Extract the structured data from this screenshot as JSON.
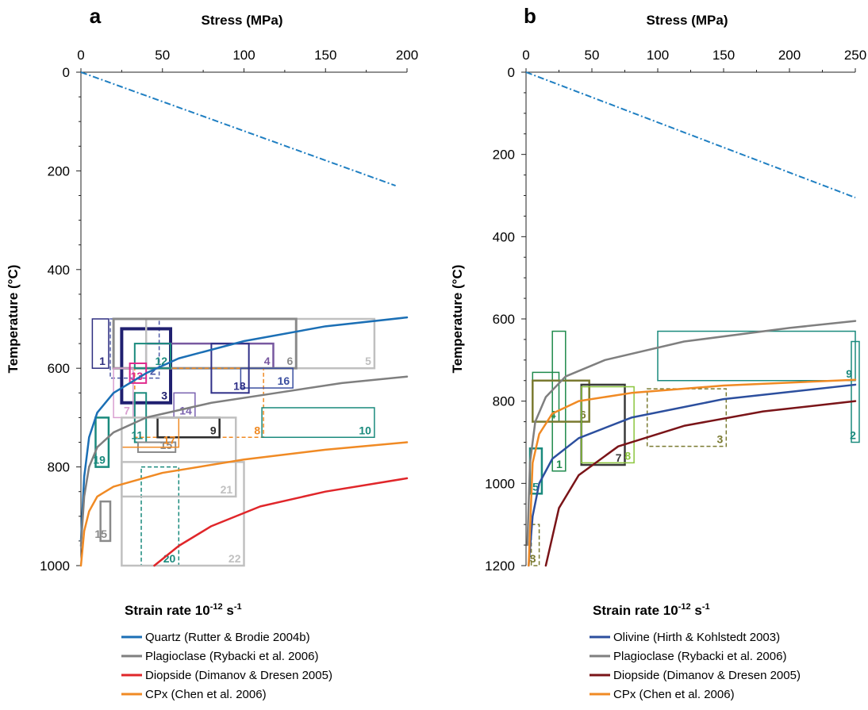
{
  "chart_data": [
    {
      "type": "line",
      "panel_label": "a",
      "xlabel": "Stress (MPa)",
      "ylabel": "Temperature (°C)",
      "xlim": [
        0,
        200
      ],
      "ylim": [
        0,
        1000
      ],
      "y_inverted": true,
      "x_axis_position": "top",
      "xticks": [
        0,
        50,
        100,
        150,
        200
      ],
      "yticks": [
        0,
        200,
        400,
        600,
        800,
        1000
      ],
      "grid": false,
      "reference_line": {
        "color": "#1f7fc2",
        "style": "dash-dot",
        "points": [
          [
            0,
            0
          ],
          [
            193,
            230
          ]
        ]
      },
      "series": [
        {
          "name": "Quartz (Rutter & Brodie 2004b)",
          "color": "#1b6fb5",
          "points": [
            [
              0,
              950
            ],
            [
              2,
              820
            ],
            [
              5,
              740
            ],
            [
              10,
              690
            ],
            [
              20,
              650
            ],
            [
              40,
              610
            ],
            [
              60,
              580
            ],
            [
              100,
              545
            ],
            [
              150,
              515
            ],
            [
              200,
              497
            ]
          ]
        },
        {
          "name": "Plagioclase (Rybacki et al. 2006)",
          "color": "#7f7f7f",
          "points": [
            [
              0,
              960
            ],
            [
              2,
              860
            ],
            [
              5,
              800
            ],
            [
              10,
              760
            ],
            [
              20,
              730
            ],
            [
              40,
              700
            ],
            [
              80,
              670
            ],
            [
              120,
              650
            ],
            [
              160,
              630
            ],
            [
              200,
              617
            ]
          ]
        },
        {
          "name": "Diopside (Dimanov & Dresen 2005)",
          "color": "#e0262a",
          "points": [
            [
              45,
              1000
            ],
            [
              60,
              960
            ],
            [
              80,
              920
            ],
            [
              110,
              880
            ],
            [
              150,
              850
            ],
            [
              200,
              823
            ]
          ]
        },
        {
          "name": "CPx (Chen et al. 2006)",
          "color": "#f08a24",
          "points": [
            [
              0,
              1000
            ],
            [
              2,
              930
            ],
            [
              5,
              890
            ],
            [
              10,
              860
            ],
            [
              20,
              840
            ],
            [
              50,
              812
            ],
            [
              100,
              785
            ],
            [
              150,
              765
            ],
            [
              200,
              750
            ]
          ]
        }
      ],
      "boxes": [
        {
          "label": "1",
          "x0": 7,
          "x1": 17,
          "y0": 500,
          "y1": 600,
          "color": "#2f2f80",
          "width": 1.5,
          "dashed": false
        },
        {
          "label": "2",
          "x0": 18,
          "x1": 48,
          "y0": 500,
          "y1": 620,
          "color": "#4e5aa8",
          "width": 1.5,
          "dashed": true
        },
        {
          "label": "3",
          "x0": 25,
          "x1": 55,
          "y0": 520,
          "y1": 670,
          "color": "#202070",
          "width": 4,
          "dashed": false
        },
        {
          "label": "4",
          "x0": 40,
          "x1": 118,
          "y0": 550,
          "y1": 600,
          "color": "#7858a0",
          "width": 2.5,
          "dashed": false
        },
        {
          "label": "5",
          "x0": 40,
          "x1": 180,
          "y0": 500,
          "y1": 600,
          "color": "#c0c0c0",
          "width": 2.5,
          "dashed": false
        },
        {
          "label": "6",
          "x0": 20,
          "x1": 132,
          "y0": 500,
          "y1": 600,
          "color": "#8a8a8a",
          "width": 3,
          "dashed": false
        },
        {
          "label": "7",
          "x0": 20,
          "x1": 32,
          "y0": 600,
          "y1": 700,
          "color": "#d99fd0",
          "width": 1.5,
          "dashed": false
        },
        {
          "label": "8",
          "x0": 33,
          "x1": 112,
          "y0": 600,
          "y1": 740,
          "color": "#f08a24",
          "width": 1.5,
          "dashed": true
        },
        {
          "label": "9",
          "x0": 47,
          "x1": 85,
          "y0": 700,
          "y1": 740,
          "color": "#2a2a2a",
          "width": 2.5,
          "dashed": false
        },
        {
          "label": "10",
          "x0": 111,
          "x1": 180,
          "y0": 680,
          "y1": 740,
          "color": "#1a8a7d",
          "width": 1.5,
          "dashed": false
        },
        {
          "label": "11",
          "x0": 33,
          "x1": 40,
          "y0": 650,
          "y1": 750,
          "color": "#1a8a7d",
          "width": 2,
          "dashed": false
        },
        {
          "label": "12",
          "x0": 33,
          "x1": 55,
          "y0": 550,
          "y1": 600,
          "color": "#1a8a7d",
          "width": 2,
          "dashed": false
        },
        {
          "label": "13",
          "x0": 30,
          "x1": 40,
          "y0": 590,
          "y1": 630,
          "color": "#e0288c",
          "width": 2,
          "dashed": false
        },
        {
          "label": "14",
          "x0": 57,
          "x1": 70,
          "y0": 650,
          "y1": 700,
          "color": "#7a62b0",
          "width": 1.5,
          "dashed": false
        },
        {
          "label": "15",
          "x0": 35,
          "x1": 58,
          "y0": 750,
          "y1": 770,
          "color": "#8a8a8a",
          "width": 2,
          "dashed": false
        },
        {
          "label": "15",
          "x0": 12,
          "x1": 18,
          "y0": 870,
          "y1": 950,
          "color": "#8a8a8a",
          "width": 2.5,
          "dashed": false
        },
        {
          "label": "16",
          "x0": 98,
          "x1": 130,
          "y0": 600,
          "y1": 640,
          "color": "#3b4fa0",
          "width": 1.5,
          "dashed": false
        },
        {
          "label": "17",
          "x0": 25,
          "x1": 60,
          "y0": 700,
          "y1": 760,
          "color": "#f08a24",
          "width": 1.5,
          "dashed": false
        },
        {
          "label": "18",
          "x0": 80,
          "x1": 103,
          "y0": 550,
          "y1": 650,
          "color": "#303088",
          "width": 2,
          "dashed": false
        },
        {
          "label": "19",
          "x0": 9,
          "x1": 17,
          "y0": 700,
          "y1": 800,
          "color": "#1a8a7d",
          "width": 2.5,
          "dashed": false
        },
        {
          "label": "20",
          "x0": 37,
          "x1": 60,
          "y0": 800,
          "y1": 1000,
          "color": "#1a8a7d",
          "width": 1.5,
          "dashed": true
        },
        {
          "label": "21",
          "x0": 25,
          "x1": 95,
          "y0": 700,
          "y1": 860,
          "color": "#c0c0c0",
          "width": 2.5,
          "dashed": false
        },
        {
          "label": "22",
          "x0": 25,
          "x1": 100,
          "y0": 790,
          "y1": 1000,
          "color": "#c0c0c0",
          "width": 2.5,
          "dashed": false
        }
      ]
    },
    {
      "type": "line",
      "panel_label": "b",
      "xlabel": "Stress (MPa)",
      "ylabel": "Temperature (°C)",
      "xlim": [
        0,
        250
      ],
      "ylim": [
        0,
        1200
      ],
      "y_inverted": true,
      "x_axis_position": "top",
      "xticks": [
        0,
        50,
        100,
        150,
        200,
        250
      ],
      "yticks": [
        0,
        200,
        400,
        600,
        800,
        1000,
        1200
      ],
      "grid": false,
      "reference_line": {
        "color": "#1f7fc2",
        "style": "dash-dot",
        "points": [
          [
            0,
            0
          ],
          [
            250,
            305
          ]
        ]
      },
      "series": [
        {
          "name": "Olivine (Hirth & Kohlstedt 2003)",
          "color": "#2c4f9e",
          "points": [
            [
              2,
              1200
            ],
            [
              5,
              1080
            ],
            [
              10,
              1000
            ],
            [
              20,
              940
            ],
            [
              40,
              890
            ],
            [
              80,
              840
            ],
            [
              150,
              795
            ],
            [
              250,
              760
            ]
          ]
        },
        {
          "name": "Plagioclase (Rybacki et al. 2006)",
          "color": "#7f7f7f",
          "points": [
            [
              1,
              1150
            ],
            [
              3,
              950
            ],
            [
              7,
              850
            ],
            [
              15,
              790
            ],
            [
              30,
              740
            ],
            [
              60,
              700
            ],
            [
              120,
              655
            ],
            [
              200,
              622
            ],
            [
              250,
              605
            ]
          ]
        },
        {
          "name": "Diopside (Dimanov & Dresen 2005)",
          "color": "#7a1418",
          "points": [
            [
              15,
              1200
            ],
            [
              25,
              1060
            ],
            [
              40,
              980
            ],
            [
              70,
              910
            ],
            [
              120,
              860
            ],
            [
              180,
              825
            ],
            [
              250,
              800
            ]
          ]
        },
        {
          "name": "CPx (Chen et al. 2006)",
          "color": "#f08a24",
          "points": [
            [
              2,
              1200
            ],
            [
              5,
              950
            ],
            [
              10,
              880
            ],
            [
              20,
              830
            ],
            [
              40,
              800
            ],
            [
              80,
              780
            ],
            [
              150,
              762
            ],
            [
              250,
              748
            ]
          ]
        }
      ],
      "boxes": [
        {
          "label": "1",
          "x0": 20,
          "x1": 30,
          "y0": 630,
          "y1": 970,
          "color": "#1f8a4c",
          "width": 1.5,
          "dashed": false
        },
        {
          "label": "2",
          "x0": 247,
          "x1": 253,
          "y0": 655,
          "y1": 900,
          "color": "#1a8a7d",
          "width": 1.5,
          "dashed": false
        },
        {
          "label": "3",
          "x0": 92,
          "x1": 152,
          "y0": 770,
          "y1": 910,
          "color": "#7a7a30",
          "width": 1.5,
          "dashed": true
        },
        {
          "label": "3",
          "x0": 4,
          "x1": 10,
          "y0": 1100,
          "y1": 1200,
          "color": "#7a7a30",
          "width": 1.5,
          "dashed": true
        },
        {
          "label": "4",
          "x0": 5,
          "x1": 25,
          "y0": 730,
          "y1": 850,
          "color": "#1f8a4c",
          "width": 1.5,
          "dashed": false
        },
        {
          "label": "5",
          "x0": 3,
          "x1": 12,
          "y0": 915,
          "y1": 1025,
          "color": "#1a8a7d",
          "width": 2.5,
          "dashed": false
        },
        {
          "label": "6",
          "x0": 5,
          "x1": 48,
          "y0": 750,
          "y1": 850,
          "color": "#7a7a30",
          "width": 2.5,
          "dashed": false
        },
        {
          "label": "7",
          "x0": 42,
          "x1": 75,
          "y0": 760,
          "y1": 955,
          "color": "#3a3a3a",
          "width": 2.5,
          "dashed": false
        },
        {
          "label": "8",
          "x0": 42,
          "x1": 82,
          "y0": 765,
          "y1": 950,
          "color": "#8cc63e",
          "width": 1.5,
          "dashed": false
        },
        {
          "label": "9",
          "x0": 100,
          "x1": 250,
          "y0": 630,
          "y1": 750,
          "color": "#1a8a7d",
          "width": 1.5,
          "dashed": false
        }
      ]
    }
  ],
  "legend": {
    "title": "Strain rate 10",
    "title_sup": "-12",
    "title_mid": " s",
    "title_sup2": "-1"
  }
}
